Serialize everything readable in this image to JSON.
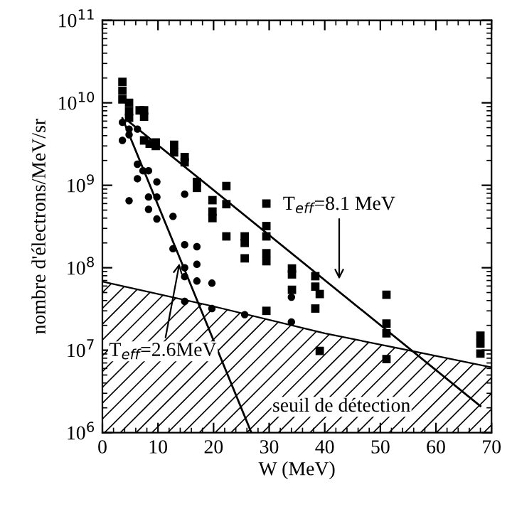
{
  "chart_data": {
    "type": "scatter",
    "xlabel": "W (MeV)",
    "ylabel": "nombre d'électrons/MeV/sr",
    "log": "y",
    "grid": false,
    "legend": false,
    "xlim": [
      0,
      70
    ],
    "xticks": [
      0,
      10,
      20,
      30,
      40,
      50,
      60,
      70
    ],
    "ylim": [
      1000000,
      100000000000
    ],
    "yticks": [
      {
        "value": 1000000,
        "label": "10$^{6}$"
      },
      {
        "value": 10000000,
        "label": "10$^{7}$"
      },
      {
        "value": 100000000,
        "label": "10$^{8}$"
      },
      {
        "value": 1000000000,
        "label": "10$^{9}$"
      },
      {
        "value": 10000000000,
        "label": "10$^{10}$"
      },
      {
        "value": 100000000000,
        "label": "10$^{11}$"
      }
    ],
    "series": [
      {
        "name": "seuil de détection",
        "type": "area",
        "color": "#000000",
        "x": [
          0,
          20,
          40,
          55,
          70
        ],
        "values": [
          68000000.0,
          34000000.0,
          16000000.0,
          10000000.0,
          6200000.0
        ]
      },
      {
        "marker": "square",
        "color": "#000000",
        "x": [
          3.6,
          3.6,
          3.6,
          4.8,
          4.8,
          4.8,
          6.7,
          7.5,
          7.5,
          7.5,
          8.5,
          9.6,
          9.6,
          12.9,
          12.9,
          14.8,
          14.8,
          17,
          17,
          19.8,
          19.8,
          19.8,
          22.3,
          22.3,
          22.3,
          25.6,
          25.6,
          25.6,
          29.5,
          29.5,
          29.5,
          29.5,
          29.5,
          29.5,
          34.1,
          34.1,
          34.1,
          38.3,
          38.3,
          38.3,
          39.1,
          39.1,
          51.1,
          51.1,
          51.1,
          51.1,
          68,
          68,
          68
        ],
        "values": [
          18000000000.0,
          14000000000.0,
          11000000000.0,
          10000000000.0,
          7900000000.0,
          6600000000.0,
          8100000000.0,
          8100000000.0,
          6800000000.0,
          3500000000.0,
          3200000000.0,
          3300000000.0,
          3000000000.0,
          3100000000.0,
          2500000000.0,
          2200000000.0,
          1900000000.0,
          1100000000.0,
          930000000.0,
          660000000.0,
          480000000.0,
          400000000.0,
          980000000.0,
          590000000.0,
          240000000.0,
          240000000.0,
          200000000.0,
          130000000.0,
          600000000.0,
          320000000.0,
          240000000.0,
          150000000.0,
          120000000.0,
          30000000.0,
          98000000.0,
          83000000.0,
          54000000.0,
          79000000.0,
          59000000.0,
          32000000.0,
          48000000.0,
          9800000.0,
          47000000.0,
          21000000.0,
          16000000.0,
          7800000.0,
          15000000.0,
          12000000.0,
          9100000.0
        ]
      },
      {
        "marker": "circle",
        "color": "#000000",
        "x": [
          3.6,
          3.6,
          4.8,
          4.8,
          4.8,
          6.3,
          6.3,
          6.3,
          7.3,
          8.3,
          8.3,
          8.3,
          9.8,
          9.8,
          9.8,
          12.7,
          12.7,
          14.8,
          14.8,
          14.8,
          14.8,
          14.8,
          17,
          17,
          17,
          19.7,
          19.7,
          25.6,
          34,
          34
        ],
        "values": [
          5800000000.0,
          3500000000.0,
          4800000000.0,
          4100000000.0,
          650000000.0,
          4800000000.0,
          1800000000.0,
          1200000000.0,
          1500000000.0,
          1500000000.0,
          720000000.0,
          510000000.0,
          1100000000.0,
          720000000.0,
          390000000.0,
          420000000.0,
          170000000.0,
          780000000.0,
          190000000.0,
          100000000.0,
          78000000.0,
          39000000.0,
          180000000.0,
          110000000.0,
          69000000.0,
          65000000.0,
          32000000.0,
          27000000.0,
          44000000.0,
          22000000.0
        ]
      },
      {
        "type": "line",
        "color": "#000000",
        "line_style": "solid",
        "x": [
          3.6,
          26.8
        ],
        "values": [
          6500000000.0,
          1000000.0
        ]
      },
      {
        "type": "line",
        "color": "#000000",
        "line_style": "solid",
        "x": [
          4.4,
          68
        ],
        "values": [
          6200000000.0,
          2100000.0
        ]
      }
    ],
    "annotations": [
      {
        "text": "T$_{eff}$=8.1 MeV",
        "x": 42.6,
        "y": 65000000.0
      },
      {
        "text": "T$_{eff}$=2.6MeV",
        "x": 14.0,
        "y": 126000000.0
      }
    ]
  }
}
